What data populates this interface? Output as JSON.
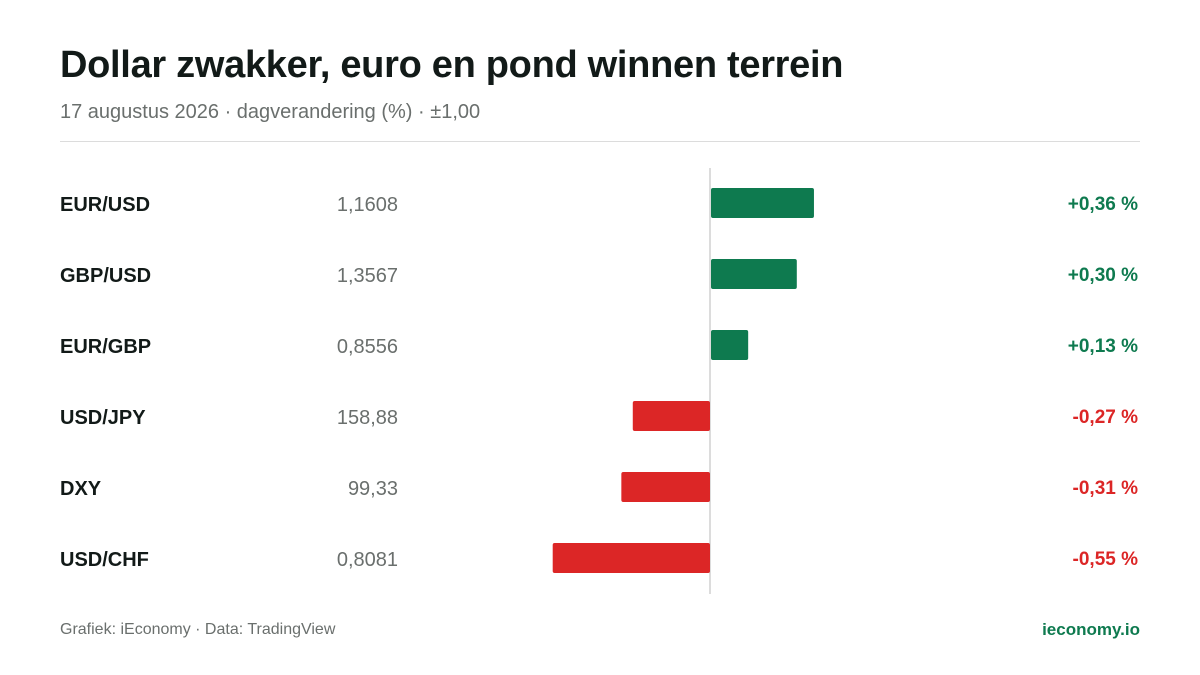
{
  "header": {
    "title": "Dollar zwakker, euro en pond winnen terrein",
    "subtitle": "17 augustus 2026 · dagverandering (%) · ±1,00"
  },
  "footer": {
    "source": "Grafiek: iEconomy · Data: TradingView",
    "brand": "ieconomy.io"
  },
  "colors": {
    "positive": "#0e7a4f",
    "negative": "#dc2626",
    "axis": "#d0d0d0"
  },
  "chart_data": {
    "type": "bar",
    "orientation": "horizontal",
    "xlim": [
      -1.0,
      1.0
    ],
    "unit": "%",
    "categories": [
      "EUR/USD",
      "GBP/USD",
      "EUR/GBP",
      "USD/JPY",
      "DXY",
      "USD/CHF"
    ],
    "rates": [
      "1,1608",
      "1,3567",
      "0,8556",
      "158,88",
      "99,33",
      "0,8081"
    ],
    "values": [
      0.36,
      0.3,
      0.13,
      -0.27,
      -0.31,
      -0.55
    ],
    "value_labels": [
      "+0,36 %",
      "+0,30 %",
      "+0,13 %",
      "-0,27 %",
      "-0,31 %",
      "-0,55 %"
    ]
  }
}
